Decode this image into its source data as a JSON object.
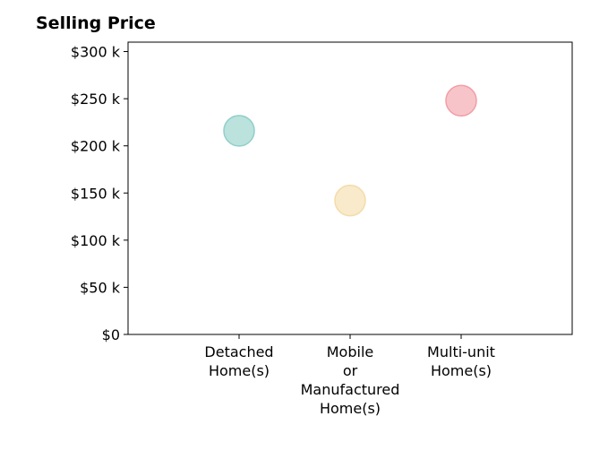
{
  "chart_data": {
    "type": "scatter",
    "title": "Selling Price",
    "categories": [
      [
        "Detached",
        "Home(s)"
      ],
      [
        "Mobile",
        "or",
        "Manufactured",
        "Home(s)"
      ],
      [
        "Multi-unit",
        "Home(s)"
      ]
    ],
    "values": [
      216000,
      142000,
      248000
    ],
    "point_colors": [
      "#8fcfc8",
      "#f3dca8",
      "#f19ea5"
    ],
    "ylim": [
      0,
      310000
    ],
    "yticks": [
      0,
      50000,
      100000,
      150000,
      200000,
      250000,
      300000
    ],
    "yticklabels": [
      "$0",
      "$50 k",
      "$100 k",
      "$150 k",
      "$200 k",
      "$250 k",
      "$300 k"
    ],
    "xlabel": "",
    "ylabel": "",
    "grid": false,
    "legend": "none"
  }
}
